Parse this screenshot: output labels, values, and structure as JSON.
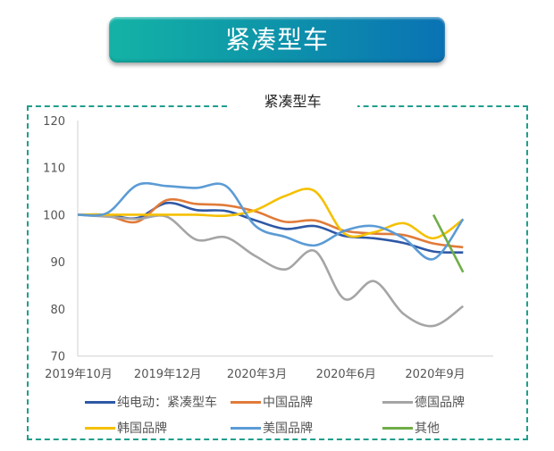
{
  "banner": {
    "title": "紧凑型车"
  },
  "chart_data": {
    "type": "line",
    "title": "紧凑型车",
    "xlabel": "",
    "ylabel": "",
    "ylim": [
      70,
      120
    ],
    "yticks": [
      70,
      80,
      90,
      100,
      110,
      120
    ],
    "categories": [
      "2019年10月",
      "",
      "",
      "2019年12月",
      "",
      "",
      "2020年3月",
      "",
      "",
      "2020年6月",
      "",
      "",
      "2020年9月",
      ""
    ],
    "grid": false,
    "smooth": true,
    "legend_position": "bottom",
    "series": [
      {
        "name": "纯电动：紧凑型车",
        "color": "#2e58a6",
        "values": [
          100,
          100,
          99.3,
          102.5,
          101,
          100.8,
          98.8,
          97,
          97.6,
          95.5,
          95,
          94,
          92.2,
          92
        ]
      },
      {
        "name": "中国品牌",
        "color": "#e07b39",
        "values": [
          100,
          99.8,
          98.5,
          103.1,
          102.3,
          102,
          100.7,
          98.5,
          98.8,
          96.6,
          96,
          95.7,
          93.9,
          93.1
        ]
      },
      {
        "name": "德国品牌",
        "color": "#a5a5a5",
        "values": [
          100,
          99.6,
          99.1,
          99.6,
          94.7,
          95.2,
          91.2,
          88.4,
          92.3,
          82.1,
          85.9,
          78.9,
          76.4,
          80.6
        ]
      },
      {
        "name": "韩国品牌",
        "color": "#f5c000",
        "values": [
          100,
          100,
          100,
          100,
          100,
          99.8,
          101,
          104,
          105,
          96,
          96.3,
          98.2,
          95,
          99
        ]
      },
      {
        "name": "美国品牌",
        "color": "#5b9bd5",
        "values": [
          100,
          100.4,
          106.3,
          106.1,
          105.7,
          106.1,
          97.6,
          95.3,
          93.5,
          96.6,
          97.6,
          95,
          90.6,
          99.1
        ]
      },
      {
        "name": "其他",
        "color": "#70ad47",
        "values": [
          null,
          null,
          null,
          null,
          null,
          null,
          null,
          null,
          null,
          null,
          null,
          null,
          100,
          87.8
        ]
      }
    ]
  }
}
